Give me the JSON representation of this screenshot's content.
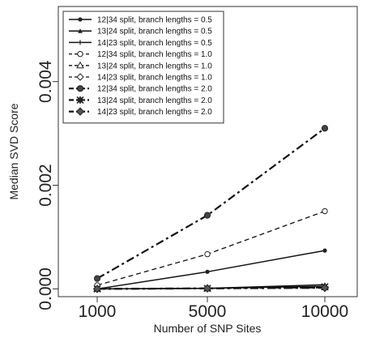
{
  "chart_data": {
    "type": "line",
    "title": "",
    "xlabel": "Number of SNP Sites",
    "ylabel": "Median SVD Score",
    "x": [
      1000,
      5000,
      10000
    ],
    "x_tick_labels": [
      "1000",
      "5000",
      "10000"
    ],
    "y_ticks": [
      0.0,
      0.002,
      0.004
    ],
    "y_tick_labels": [
      "0.000",
      "0.002",
      "0.004"
    ],
    "ylim": [
      -0.00015,
      0.00545
    ],
    "grid": false,
    "legend_position": "top-left",
    "series": [
      {
        "name": "12|34 split, branch lengths = 0.5",
        "values": [
          0.0,
          0.00033,
          0.00074
        ],
        "dash": "solid",
        "marker": "dot"
      },
      {
        "name": "13|24 split, branch lengths = 0.5",
        "values": [
          0.0,
          1e-05,
          8e-05
        ],
        "dash": "solid",
        "marker": "small-triangle"
      },
      {
        "name": "14|23 split, branch lengths = 0.5",
        "values": [
          0.0,
          1e-05,
          5e-05
        ],
        "dash": "solid",
        "marker": "plus"
      },
      {
        "name": "12|34 split, branch lengths = 1.0",
        "values": [
          7e-05,
          0.00067,
          0.0015
        ],
        "dash": "dashed",
        "marker": "open-circle"
      },
      {
        "name": "13|24 split, branch lengths = 1.0",
        "values": [
          0.0,
          1e-05,
          3e-05
        ],
        "dash": "dashed",
        "marker": "open-triangle"
      },
      {
        "name": "14|23 split, branch lengths = 1.0",
        "values": [
          0.0,
          1e-05,
          2e-05
        ],
        "dash": "dashed",
        "marker": "open-diamond"
      },
      {
        "name": "12|34 split, branch lengths = 2.0",
        "values": [
          0.0002,
          0.00142,
          0.0031
        ],
        "dash": "dashdot",
        "marker": "filled-circle"
      },
      {
        "name": "13|24 split, branch lengths = 2.0",
        "values": [
          0.0,
          1e-05,
          4e-05
        ],
        "dash": "dashdot",
        "marker": "star"
      },
      {
        "name": "14|23 split, branch lengths = 2.0",
        "values": [
          0.0,
          1e-05,
          2e-05
        ],
        "dash": "dashdot",
        "marker": "filled-diamond"
      }
    ]
  }
}
